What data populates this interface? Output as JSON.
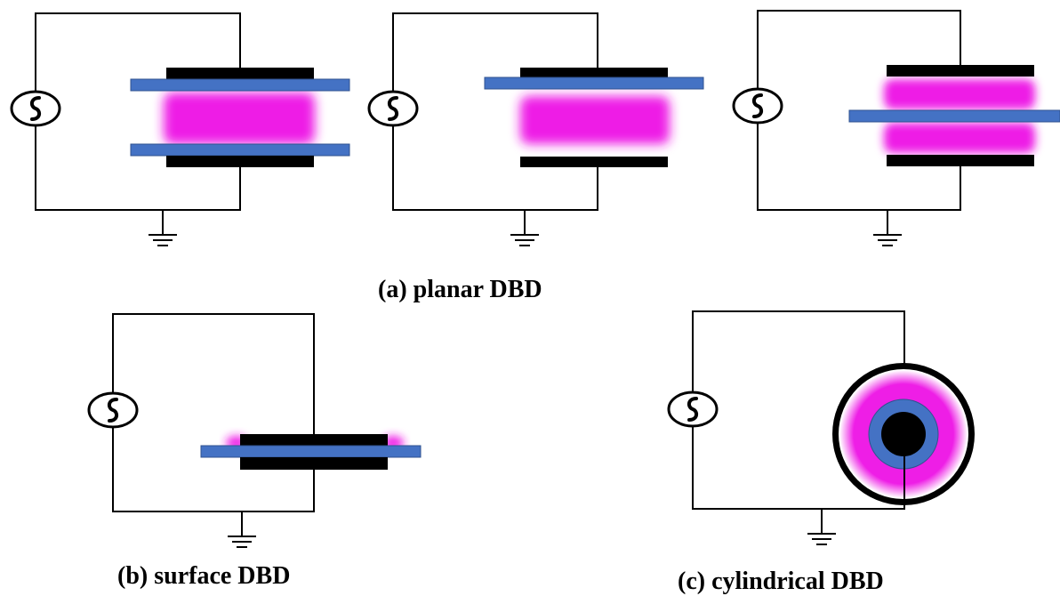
{
  "captions": {
    "planar": "(a) planar DBD",
    "surface": "(b) surface DBD",
    "cylindrical": "(c) cylindrical DBD"
  },
  "colors": {
    "wire": "#000000",
    "electrode": "#000000",
    "dielectric": "#4472C4",
    "plasma": "#EE1EE6",
    "background": "#FFFFFF"
  },
  "icons": [
    "ac-source-icon",
    "ground-icon"
  ]
}
